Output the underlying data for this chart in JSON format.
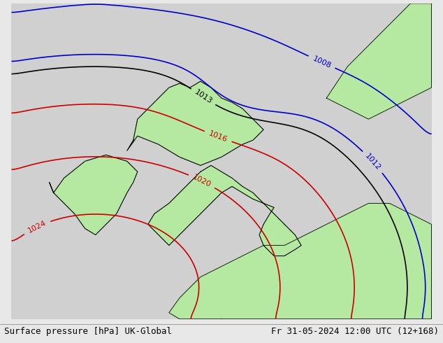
{
  "title_left": "Surface pressure [hPa] UK-Global",
  "title_right": "Fr 31-05-2024 12:00 UTC (12+168)",
  "bg_color": "#d8d8d8",
  "land_color": "#b5e8a0",
  "border_color": "#000000",
  "sea_color": "#d0d0d0",
  "isobar_red_color": "#cc0000",
  "isobar_blue_color": "#0000cc",
  "isobar_black_color": "#000000",
  "font_size_title": 9,
  "font_size_label": 8
}
